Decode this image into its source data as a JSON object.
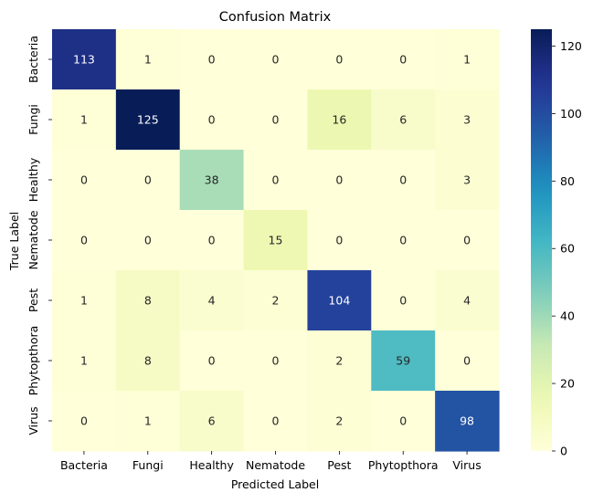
{
  "chart_data": {
    "type": "heatmap",
    "title": "Confusion Matrix",
    "xlabel": "Predicted Label",
    "ylabel": "True Label",
    "x_categories": [
      "Bacteria",
      "Fungi",
      "Healthy",
      "Nematode",
      "Pest",
      "Phytopthora",
      "Virus"
    ],
    "y_categories": [
      "Bacteria",
      "Fungi",
      "Healthy",
      "Nematode",
      "Pest",
      "Phytopthora",
      "Virus"
    ],
    "values": [
      [
        113,
        1,
        0,
        0,
        0,
        0,
        1
      ],
      [
        1,
        125,
        0,
        0,
        16,
        6,
        3
      ],
      [
        0,
        0,
        38,
        0,
        0,
        0,
        3
      ],
      [
        0,
        0,
        0,
        15,
        0,
        0,
        0
      ],
      [
        1,
        8,
        4,
        2,
        104,
        0,
        4
      ],
      [
        1,
        8,
        0,
        0,
        2,
        59,
        0
      ],
      [
        0,
        1,
        6,
        0,
        2,
        0,
        98
      ]
    ],
    "colorbar": {
      "min": 0,
      "max": 125,
      "ticks": [
        0,
        20,
        40,
        60,
        80,
        100,
        120
      ],
      "colormap": "YlGnBu"
    },
    "annotations": true
  }
}
